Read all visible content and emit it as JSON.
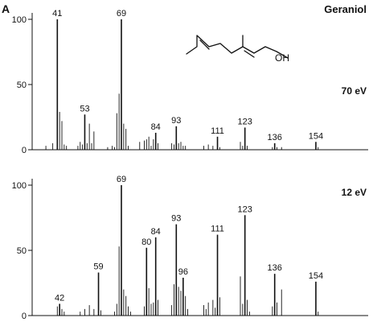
{
  "panel_label": "A",
  "compound": "Geraniol",
  "molecule": {
    "oh_label": "OH"
  },
  "chart_data": [
    {
      "type": "bar",
      "annotation": "70 eV",
      "ylim": [
        0,
        100
      ],
      "yticks": [
        0,
        50,
        100
      ],
      "xlim": [
        30,
        160
      ],
      "peaks": [
        {
          "mz": 36,
          "i": 3
        },
        {
          "mz": 39,
          "i": 5
        },
        {
          "mz": 41,
          "i": 100,
          "label": "41"
        },
        {
          "mz": 42,
          "i": 29
        },
        {
          "mz": 43,
          "i": 22
        },
        {
          "mz": 44,
          "i": 4
        },
        {
          "mz": 45,
          "i": 3
        },
        {
          "mz": 50,
          "i": 3
        },
        {
          "mz": 51,
          "i": 6
        },
        {
          "mz": 52,
          "i": 4
        },
        {
          "mz": 53,
          "i": 27,
          "label": "53"
        },
        {
          "mz": 54,
          "i": 5
        },
        {
          "mz": 55,
          "i": 20
        },
        {
          "mz": 56,
          "i": 5
        },
        {
          "mz": 57,
          "i": 14
        },
        {
          "mz": 63,
          "i": 2
        },
        {
          "mz": 65,
          "i": 3
        },
        {
          "mz": 66,
          "i": 2
        },
        {
          "mz": 67,
          "i": 28
        },
        {
          "mz": 68,
          "i": 43
        },
        {
          "mz": 69,
          "i": 100,
          "label": "69"
        },
        {
          "mz": 70,
          "i": 20
        },
        {
          "mz": 71,
          "i": 16
        },
        {
          "mz": 72,
          "i": 3
        },
        {
          "mz": 77,
          "i": 6
        },
        {
          "mz": 79,
          "i": 7
        },
        {
          "mz": 80,
          "i": 8
        },
        {
          "mz": 81,
          "i": 10
        },
        {
          "mz": 82,
          "i": 3
        },
        {
          "mz": 83,
          "i": 8
        },
        {
          "mz": 84,
          "i": 13,
          "label": "84"
        },
        {
          "mz": 85,
          "i": 5
        },
        {
          "mz": 91,
          "i": 5
        },
        {
          "mz": 92,
          "i": 4
        },
        {
          "mz": 93,
          "i": 18,
          "label": "93"
        },
        {
          "mz": 94,
          "i": 5
        },
        {
          "mz": 95,
          "i": 6
        },
        {
          "mz": 96,
          "i": 3
        },
        {
          "mz": 97,
          "i": 3
        },
        {
          "mz": 105,
          "i": 3
        },
        {
          "mz": 107,
          "i": 4
        },
        {
          "mz": 109,
          "i": 3
        },
        {
          "mz": 111,
          "i": 10,
          "label": "111"
        },
        {
          "mz": 112,
          "i": 2
        },
        {
          "mz": 121,
          "i": 6
        },
        {
          "mz": 122,
          "i": 3
        },
        {
          "mz": 123,
          "i": 17,
          "label": "123"
        },
        {
          "mz": 124,
          "i": 3
        },
        {
          "mz": 135,
          "i": 2
        },
        {
          "mz": 136,
          "i": 5,
          "label": "136"
        },
        {
          "mz": 137,
          "i": 2
        },
        {
          "mz": 139,
          "i": 2
        },
        {
          "mz": 154,
          "i": 6,
          "label": "154"
        },
        {
          "mz": 155,
          "i": 2
        }
      ]
    },
    {
      "type": "bar",
      "annotation": "12 eV",
      "ylim": [
        0,
        100
      ],
      "yticks": [
        0,
        50,
        100
      ],
      "xlim": [
        30,
        160
      ],
      "peaks": [
        {
          "mz": 41,
          "i": 7
        },
        {
          "mz": 42,
          "i": 9,
          "label": "42"
        },
        {
          "mz": 43,
          "i": 5
        },
        {
          "mz": 44,
          "i": 3
        },
        {
          "mz": 51,
          "i": 3
        },
        {
          "mz": 53,
          "i": 5
        },
        {
          "mz": 55,
          "i": 8
        },
        {
          "mz": 57,
          "i": 5
        },
        {
          "mz": 59,
          "i": 33,
          "label": "59"
        },
        {
          "mz": 60,
          "i": 4
        },
        {
          "mz": 66,
          "i": 3
        },
        {
          "mz": 67,
          "i": 9
        },
        {
          "mz": 68,
          "i": 53
        },
        {
          "mz": 69,
          "i": 100,
          "label": "69"
        },
        {
          "mz": 70,
          "i": 20
        },
        {
          "mz": 71,
          "i": 15
        },
        {
          "mz": 72,
          "i": 7
        },
        {
          "mz": 73,
          "i": 3
        },
        {
          "mz": 79,
          "i": 7
        },
        {
          "mz": 80,
          "i": 52,
          "label": "80"
        },
        {
          "mz": 81,
          "i": 21
        },
        {
          "mz": 82,
          "i": 9
        },
        {
          "mz": 83,
          "i": 10
        },
        {
          "mz": 84,
          "i": 60,
          "label": "84"
        },
        {
          "mz": 85,
          "i": 12
        },
        {
          "mz": 91,
          "i": 8
        },
        {
          "mz": 92,
          "i": 24
        },
        {
          "mz": 93,
          "i": 70,
          "label": "93"
        },
        {
          "mz": 94,
          "i": 22
        },
        {
          "mz": 95,
          "i": 19
        },
        {
          "mz": 96,
          "i": 29,
          "label": "96"
        },
        {
          "mz": 97,
          "i": 15
        },
        {
          "mz": 98,
          "i": 5
        },
        {
          "mz": 105,
          "i": 8
        },
        {
          "mz": 106,
          "i": 5
        },
        {
          "mz": 107,
          "i": 10
        },
        {
          "mz": 109,
          "i": 12
        },
        {
          "mz": 110,
          "i": 6
        },
        {
          "mz": 111,
          "i": 62,
          "label": "111"
        },
        {
          "mz": 112,
          "i": 14
        },
        {
          "mz": 121,
          "i": 30
        },
        {
          "mz": 122,
          "i": 9
        },
        {
          "mz": 123,
          "i": 77,
          "label": "123"
        },
        {
          "mz": 124,
          "i": 12
        },
        {
          "mz": 125,
          "i": 3
        },
        {
          "mz": 135,
          "i": 7
        },
        {
          "mz": 136,
          "i": 32,
          "label": "136"
        },
        {
          "mz": 137,
          "i": 10
        },
        {
          "mz": 139,
          "i": 20
        },
        {
          "mz": 154,
          "i": 26,
          "label": "154"
        },
        {
          "mz": 155,
          "i": 3
        }
      ]
    }
  ]
}
